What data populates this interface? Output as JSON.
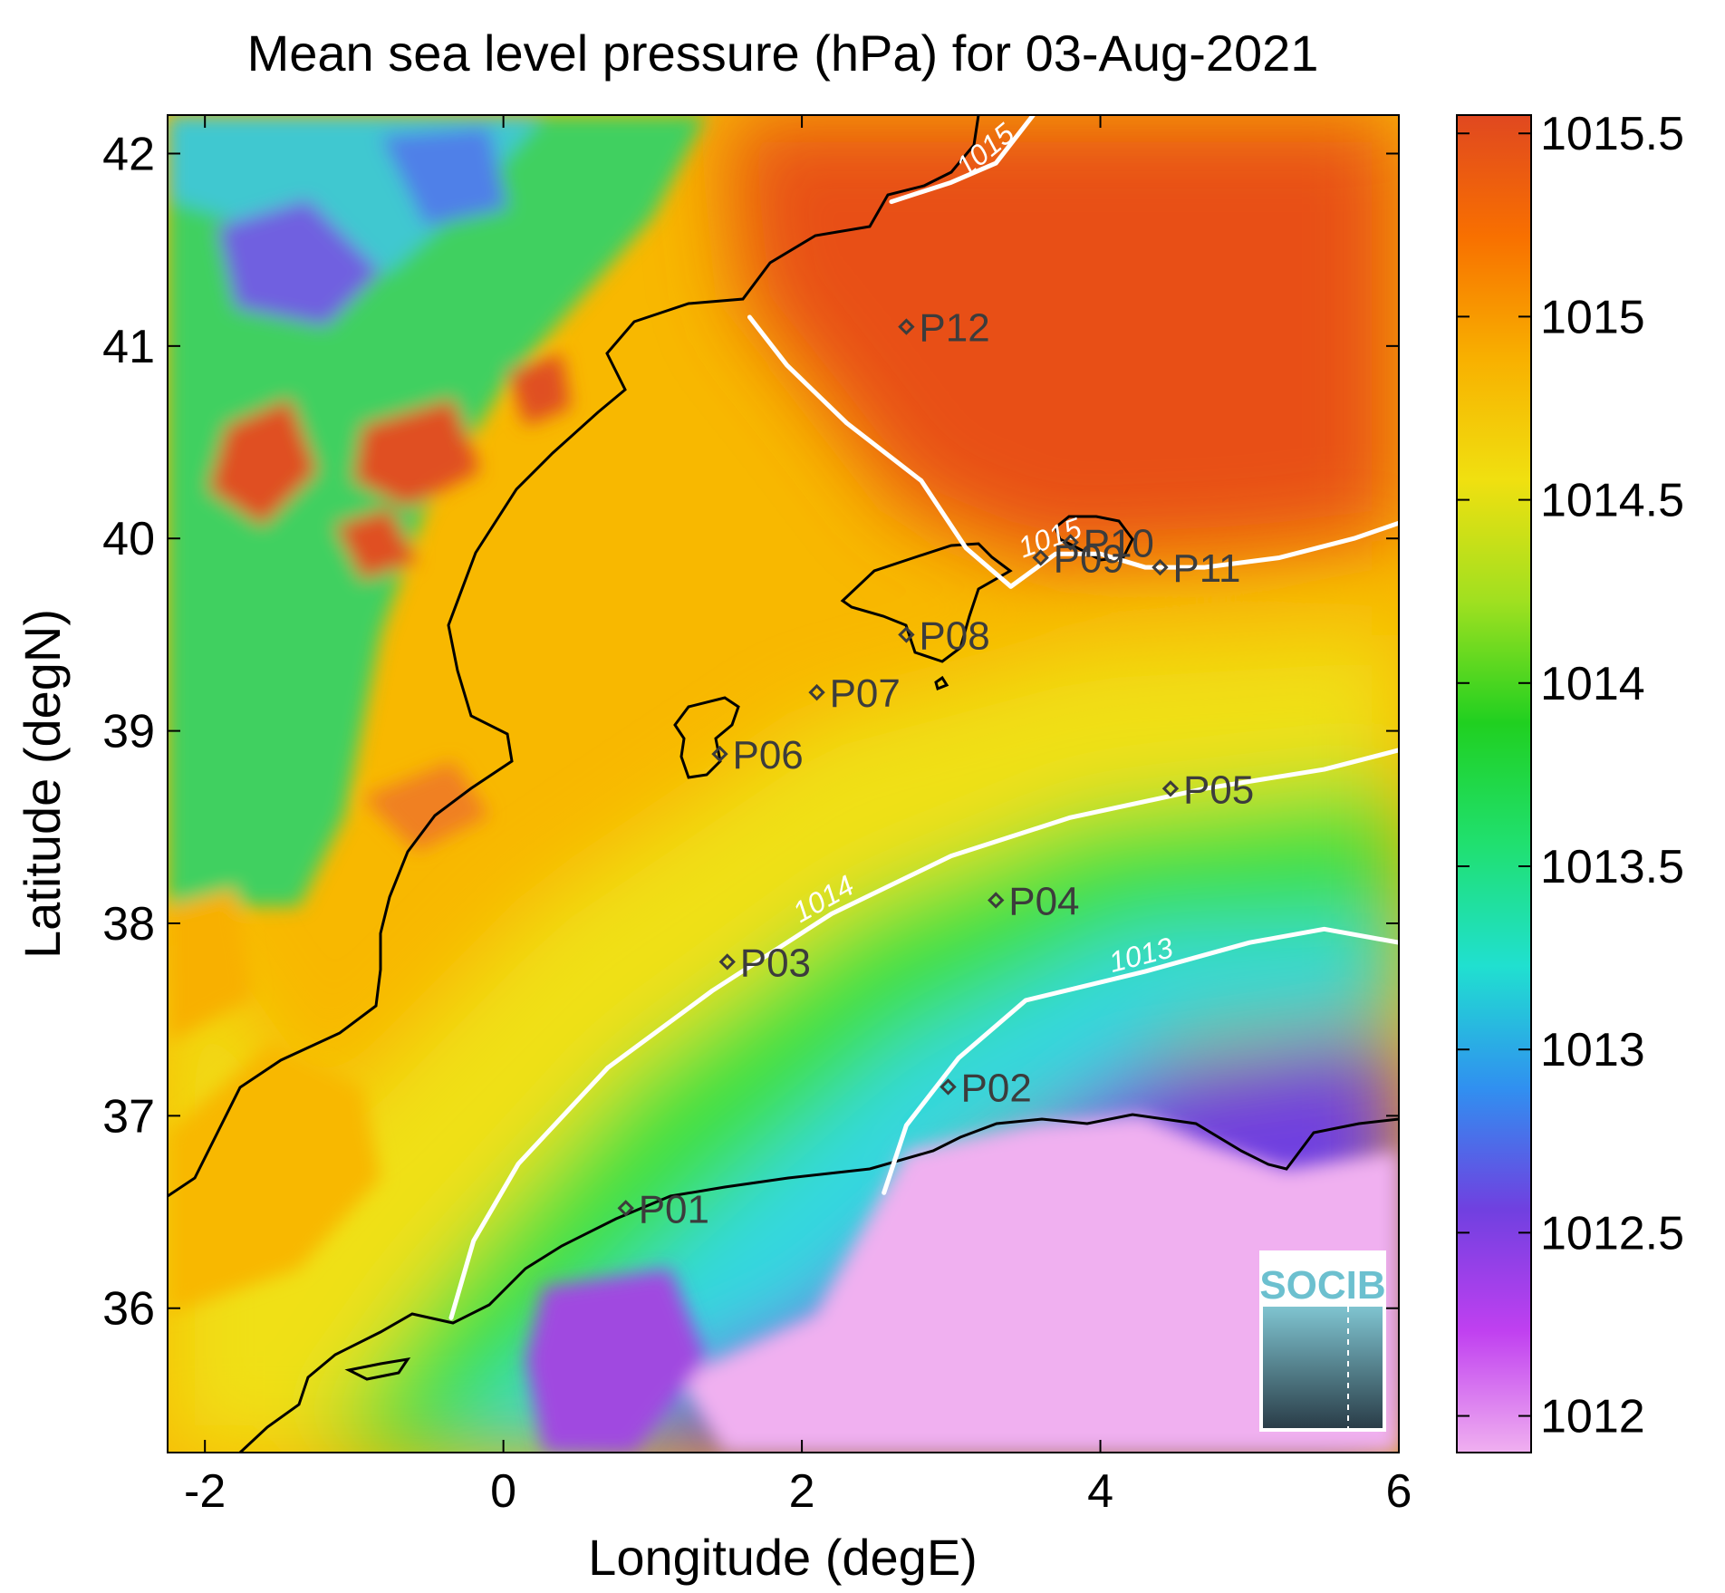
{
  "title": "Mean sea level pressure (hPa) for 03-Aug-2021",
  "xlabel": "Longitude (degE)",
  "ylabel": "Latitude (degN)",
  "x_ticks": [
    "-2",
    "0",
    "2",
    "4",
    "6"
  ],
  "y_ticks": [
    "36",
    "37",
    "38",
    "39",
    "40",
    "41",
    "42"
  ],
  "colorbar": {
    "ticks": [
      "1012",
      "1012.5",
      "1013",
      "1013.5",
      "1014",
      "1014.5",
      "1015",
      "1015.5"
    ],
    "range": [
      1011.9,
      1015.55
    ],
    "colors": [
      "#f0b0f0",
      "#c040f0",
      "#7040e0",
      "#3090f0",
      "#20e0d0",
      "#20e070",
      "#20d020",
      "#a0e020",
      "#f0e010",
      "#f8b000",
      "#f87000",
      "#e04820"
    ]
  },
  "logo": {
    "text": "SOCIB"
  },
  "chart_data": {
    "type": "heatmap",
    "title": "Mean sea level pressure (hPa) for 03-Aug-2021",
    "xlabel": "Longitude (degE)",
    "ylabel": "Latitude (degN)",
    "xlim": [
      -2.25,
      6.0
    ],
    "ylim": [
      35.25,
      42.2
    ],
    "color_range": [
      1011.9,
      1015.55
    ],
    "contours": [
      {
        "label": "1013",
        "points": [
          [
            2.55,
            36.6
          ],
          [
            2.7,
            36.95
          ],
          [
            3.05,
            37.3
          ],
          [
            3.5,
            37.6
          ],
          [
            4.3,
            37.75
          ],
          [
            5.0,
            37.9
          ],
          [
            5.5,
            37.97
          ],
          [
            6.0,
            37.9
          ]
        ]
      },
      {
        "label": "1014",
        "points": [
          [
            -0.35,
            35.95
          ],
          [
            -0.2,
            36.35
          ],
          [
            0.1,
            36.75
          ],
          [
            0.7,
            37.25
          ],
          [
            1.4,
            37.65
          ],
          [
            2.2,
            38.05
          ],
          [
            3.0,
            38.35
          ],
          [
            3.8,
            38.55
          ],
          [
            4.7,
            38.7
          ],
          [
            5.5,
            38.8
          ],
          [
            6.0,
            38.9
          ]
        ]
      },
      {
        "label": "1015",
        "points": [
          [
            1.65,
            41.15
          ],
          [
            1.9,
            40.9
          ],
          [
            2.3,
            40.6
          ],
          [
            2.8,
            40.3
          ],
          [
            3.1,
            39.95
          ],
          [
            3.4,
            39.75
          ],
          [
            3.7,
            39.92
          ],
          [
            4.0,
            39.92
          ],
          [
            4.3,
            39.85
          ],
          [
            4.7,
            39.85
          ],
          [
            5.2,
            39.9
          ],
          [
            5.7,
            40.0
          ],
          [
            6.0,
            40.08
          ]
        ]
      },
      {
        "label": "1015",
        "points": [
          [
            2.6,
            41.75
          ],
          [
            3.0,
            41.85
          ],
          [
            3.3,
            41.95
          ],
          [
            3.55,
            42.2
          ]
        ]
      }
    ],
    "stations": [
      {
        "name": "P01",
        "lon": 0.82,
        "lat": 36.52
      },
      {
        "name": "P02",
        "lon": 2.98,
        "lat": 37.15
      },
      {
        "name": "P03",
        "lon": 1.5,
        "lat": 37.8
      },
      {
        "name": "P04",
        "lon": 3.3,
        "lat": 38.12
      },
      {
        "name": "P05",
        "lon": 4.47,
        "lat": 38.7
      },
      {
        "name": "P06",
        "lon": 1.45,
        "lat": 38.88
      },
      {
        "name": "P07",
        "lon": 2.1,
        "lat": 39.2
      },
      {
        "name": "P08",
        "lon": 2.7,
        "lat": 39.5
      },
      {
        "name": "P09",
        "lon": 3.6,
        "lat": 39.9
      },
      {
        "name": "P10",
        "lon": 3.8,
        "lat": 39.98
      },
      {
        "name": "P11",
        "lon": 4.4,
        "lat": 39.85
      },
      {
        "name": "P12",
        "lon": 2.7,
        "lat": 41.1
      }
    ]
  }
}
